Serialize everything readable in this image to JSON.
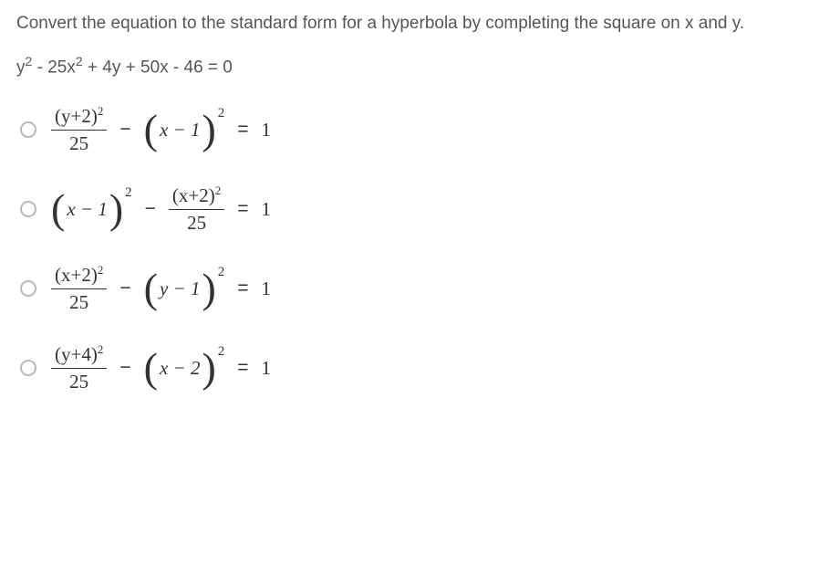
{
  "question": {
    "prompt": "Convert the equation to the standard form for a hyperbola by completing the square on x and y.",
    "equation_parts": {
      "y": "y",
      "sq1": "2",
      "minus1": " - ",
      "coef25": "25x",
      "sq2": "2",
      "plus1": " + 4y + 50x - 46 = 0"
    }
  },
  "options": [
    {
      "id": "opt-a",
      "frac_num_base": "(y+2)",
      "frac_num_exp": "2",
      "frac_den": "25",
      "op1": "−",
      "paren_var": "x",
      "paren_op": "−",
      "paren_const": "1",
      "paren_exp": "2",
      "eq": "=",
      "rhs": "1",
      "order": "frac-paren"
    },
    {
      "id": "opt-b",
      "paren_var": "x",
      "paren_op": "−",
      "paren_const": "1",
      "paren_exp": "2",
      "op1": "−",
      "frac_num_base": "(x+2)",
      "frac_num_exp": "2",
      "frac_den": "25",
      "eq": "=",
      "rhs": "1",
      "order": "paren-frac"
    },
    {
      "id": "opt-c",
      "frac_num_base": "(x+2)",
      "frac_num_exp": "2",
      "frac_den": "25",
      "op1": "−",
      "paren_var": "y",
      "paren_op": "−",
      "paren_const": "1",
      "paren_exp": "2",
      "eq": "=",
      "rhs": "1",
      "order": "frac-paren"
    },
    {
      "id": "opt-d",
      "frac_num_base": "(y+4)",
      "frac_num_exp": "2",
      "frac_den": "25",
      "op1": "−",
      "paren_var": "x",
      "paren_op": "−",
      "paren_const": "2",
      "paren_exp": "2",
      "eq": "=",
      "rhs": "1",
      "order": "frac-paren"
    }
  ],
  "colors": {
    "text": "#565656",
    "math": "#333333",
    "radio_border": "#b8b8b8",
    "background": "#ffffff"
  },
  "typography": {
    "body_font": "Segoe UI",
    "math_font": "Times New Roman",
    "question_fontsize": 19,
    "math_fontsize": 21
  }
}
